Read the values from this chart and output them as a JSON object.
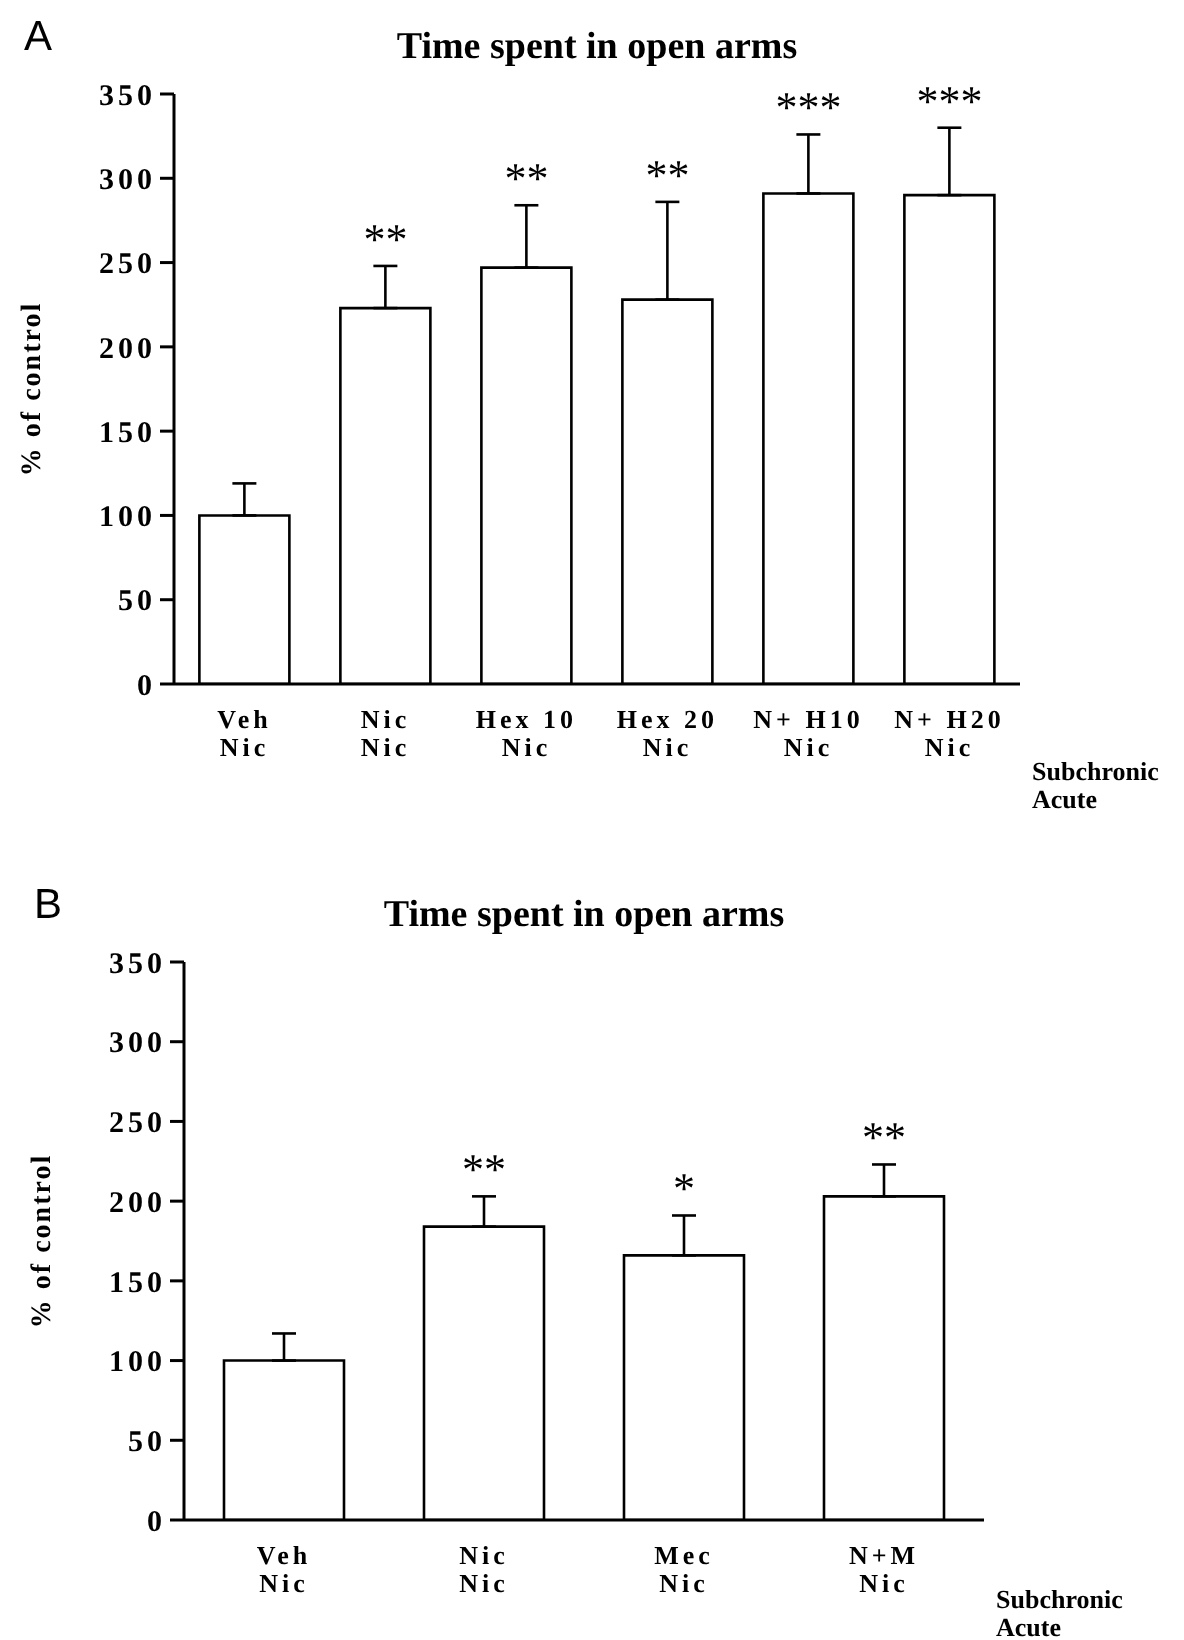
{
  "chart_data": [
    {
      "type": "bar",
      "title": "Time spent in open arms",
      "ylabel": "% of control",
      "categories": [
        "Veh\nNic",
        "Nic\nNic",
        "Hex 10\nNic",
        "Hex 20\nNic",
        "N+ H10\nNic",
        "N+ H20\nNic"
      ],
      "values": [
        100,
        223,
        247,
        228,
        291,
        290
      ],
      "color": "#ffffff",
      "errors": [
        19,
        25,
        37,
        58,
        35,
        40
      ],
      "value_labels": [
        null,
        "**",
        "**",
        "**",
        "***",
        "***"
      ],
      "ylim": [
        0,
        350
      ],
      "yticks": [
        0,
        50,
        100,
        150,
        200,
        250,
        300,
        350
      ],
      "grid": false,
      "legend": false,
      "annotations": [
        "A",
        "Subchronic",
        "Acute"
      ]
    },
    {
      "type": "bar",
      "title": "Time spent in open arms",
      "ylabel": "% of control",
      "categories": [
        "Veh\nNic",
        "Nic\nNic",
        "Mec\nNic",
        "N+M\nNic"
      ],
      "values": [
        100,
        184,
        166,
        203
      ],
      "color": "#ffffff",
      "errors": [
        17,
        19,
        25,
        20
      ],
      "value_labels": [
        null,
        "**",
        "*",
        "**"
      ],
      "ylim": [
        0,
        350
      ],
      "yticks": [
        0,
        50,
        100,
        150,
        200,
        250,
        300,
        350
      ],
      "grid": false,
      "legend": false,
      "annotations": [
        "B",
        "Subchronic",
        "Acute"
      ]
    }
  ]
}
